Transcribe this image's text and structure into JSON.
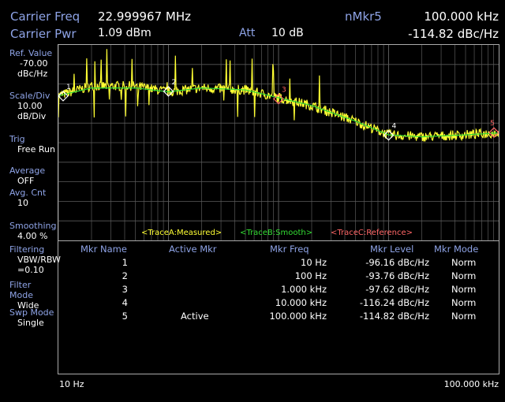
{
  "header": {
    "carrier_freq_label": "Carrier Freq",
    "carrier_freq_value": "22.999967 MHz",
    "carrier_pwr_label": "Carrier Pwr",
    "carrier_pwr_value": "1.09 dBm",
    "att_label": "Att",
    "att_value": "10 dB",
    "marker_name": "nMkr5",
    "marker_freq": "100.000 kHz",
    "marker_level": "-114.82 dBc/Hz"
  },
  "sidebar": {
    "ref_label": "Ref. Value",
    "ref_value": "-70.00",
    "ref_unit": "dBc/Hz",
    "scale_label": "Scale/Div",
    "scale_value": "10.00",
    "scale_unit": "dB/Div",
    "trig_label": "Trig",
    "trig_value": "Free Run",
    "average_label": "Average",
    "average_value": "OFF",
    "avg_cnt_label": "Avg. Cnt",
    "avg_cnt_value": "10",
    "smoothing_label": "Smoothing",
    "smoothing_value": "4.00 %",
    "filtering_label": "Filtering",
    "filtering_value1": "VBW/RBW",
    "filtering_value2": "=0.10",
    "filter_mode_label": "Filter Mode",
    "filter_mode_value": "Wide",
    "swp_mode_label": "Swp Mode",
    "swp_mode_value": "Single"
  },
  "legend": {
    "trace_a": "<TraceA:Measured>",
    "trace_b": "<TraceB:Smooth>",
    "trace_c": "<TraceC:Reference>"
  },
  "colors": {
    "trace_a": "#ffff33",
    "trace_b": "#33dd33",
    "trace_c": "#ff6666",
    "label": "#8ea3e6",
    "grid": "#5a5a5a"
  },
  "table": {
    "headers": [
      "Mkr Name",
      "Active Mkr",
      "Mkr Freq",
      "Mkr Level",
      "Mkr Mode"
    ],
    "rows": [
      [
        "1",
        "",
        "10 Hz",
        "-96.16 dBc/Hz",
        "Norm"
      ],
      [
        "2",
        "",
        "100 Hz",
        "-93.76 dBc/Hz",
        "Norm"
      ],
      [
        "3",
        "",
        "1.000 kHz",
        "-97.62 dBc/Hz",
        "Norm"
      ],
      [
        "4",
        "",
        "10.000 kHz",
        "-116.24 dBc/Hz",
        "Norm"
      ],
      [
        "5",
        "Active",
        "100.000 kHz",
        "-114.82 dBc/Hz",
        "Norm"
      ]
    ]
  },
  "footer": {
    "start_freq": "10 Hz",
    "stop_freq": "100.000 kHz"
  },
  "chart_data": {
    "type": "line",
    "x_scale": "log",
    "xlim": [
      10,
      100000
    ],
    "ylim": [
      -170,
      -70
    ],
    "ylabel": "dBc/Hz",
    "grid": true,
    "series": [
      {
        "name": "TraceA:Measured",
        "x": [
          10,
          20,
          50,
          100,
          200,
          500,
          1000,
          2000,
          5000,
          10000,
          20000,
          50000,
          100000
        ],
        "values": [
          -96,
          -91,
          -91,
          -94,
          -92,
          -93,
          -97,
          -101,
          -109,
          -116,
          -117,
          -116,
          -115
        ]
      },
      {
        "name": "TraceB:Smooth",
        "x": [
          10,
          20,
          50,
          100,
          200,
          500,
          1000,
          2000,
          5000,
          10000,
          20000,
          50000,
          100000
        ],
        "values": [
          -96,
          -92,
          -92,
          -94,
          -92,
          -93,
          -97,
          -101,
          -109,
          -116,
          -117,
          -116,
          -115
        ]
      }
    ],
    "markers": [
      {
        "label": "1",
        "x": 10,
        "y": -96.16
      },
      {
        "label": "2",
        "x": 100,
        "y": -93.76
      },
      {
        "label": "3",
        "x": 1000,
        "y": -97.62
      },
      {
        "label": "4",
        "x": 10000,
        "y": -116.24
      },
      {
        "label": "5",
        "x": 100000,
        "y": -114.82
      }
    ]
  }
}
